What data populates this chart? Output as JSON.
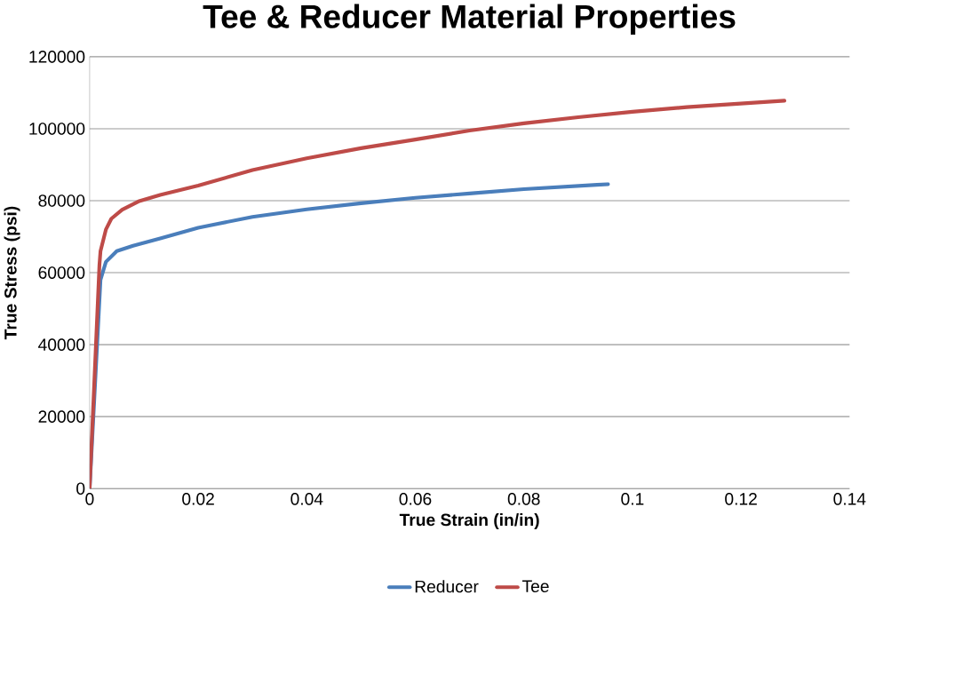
{
  "chart_data": {
    "type": "line",
    "title": "Tee & Reducer Material Properties",
    "xlabel": "True Strain (in/in)",
    "ylabel": "True Stress (psi)",
    "series": [
      {
        "name": "Reducer",
        "color": "#4a7ebb",
        "x": [
          0,
          0.002,
          0.003,
          0.005,
          0.008,
          0.013,
          0.02,
          0.03,
          0.04,
          0.05,
          0.06,
          0.07,
          0.08,
          0.0955
        ],
        "values": [
          0,
          58000,
          63000,
          66000,
          67500,
          69500,
          72500,
          75500,
          77600,
          79300,
          80800,
          82000,
          83200,
          84600
        ]
      },
      {
        "name": "Tee",
        "color": "#be4b48",
        "x": [
          0,
          0.0018,
          0.002,
          0.003,
          0.004,
          0.006,
          0.009,
          0.013,
          0.02,
          0.03,
          0.04,
          0.05,
          0.06,
          0.07,
          0.08,
          0.09,
          0.1,
          0.11,
          0.128
        ],
        "values": [
          0,
          62000,
          66000,
          72000,
          75000,
          77500,
          79800,
          81600,
          84200,
          88500,
          91800,
          94600,
          97000,
          99500,
          101500,
          103200,
          104700,
          106000,
          107800
        ]
      }
    ],
    "xlim": [
      0,
      0.14
    ],
    "xticks": [
      0,
      0.02,
      0.04,
      0.06,
      0.08,
      0.1,
      0.12,
      0.14
    ],
    "ylim": [
      0,
      120000
    ],
    "yticks": [
      0,
      20000,
      40000,
      60000,
      80000,
      100000,
      120000
    ],
    "grid": "y",
    "legend": "bottom",
    "marker": "none",
    "line_style": "solid"
  }
}
